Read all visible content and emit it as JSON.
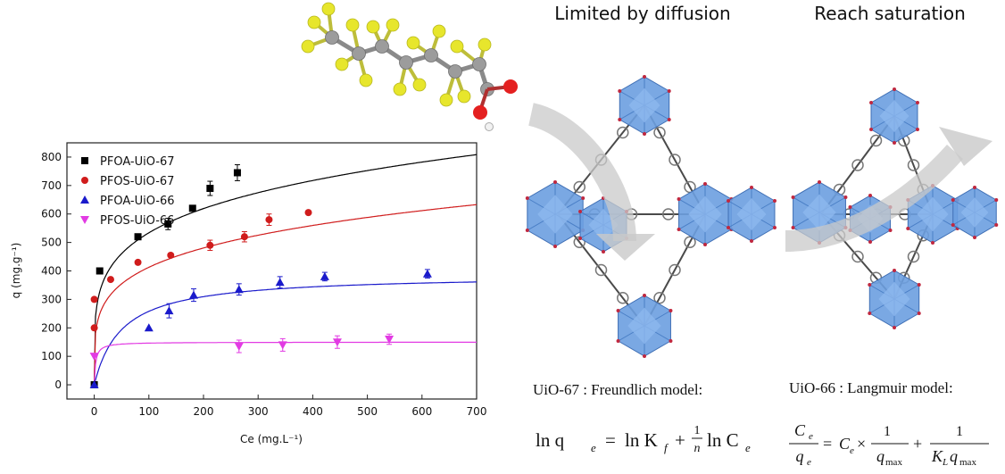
{
  "panels": {
    "left_heading": "Limited by diffusion",
    "right_heading": "Reach saturation",
    "left_model": "UiO-67 : Freundlich model:",
    "right_model": "UiO-66 : Langmuir model:"
  },
  "equations": {
    "freundlich": {
      "lhs": "ln q",
      "lhs_sub": "e",
      "eq": "=",
      "t1": "ln K",
      "t1_sub": "f",
      "plus": "+",
      "frac_num": "1",
      "frac_den": "n",
      "t2": "ln C",
      "t2_sub": "e"
    },
    "langmuir": {
      "lhs_num": "C",
      "lhs_num_sub": "e",
      "lhs_den": "q",
      "lhs_den_sub": "e",
      "eq": "=",
      "t1": "C",
      "t1_sub": "e",
      "times": "×",
      "f1_num": "1",
      "f1_den": "q",
      "f1_den_sub": "max",
      "plus": "+",
      "f2_num": "1",
      "f2_den": "K",
      "f2_den_sub": "L",
      "f2_den_tail": "q",
      "f2_den_tail_sub": "max"
    }
  },
  "chart_data": {
    "type": "scatter",
    "xlabel": "Ce (mg.L⁻¹)",
    "ylabel": "q (mg.g⁻¹)",
    "xlim": [
      -50,
      700
    ],
    "ylim": [
      -50,
      850
    ],
    "xticks": [
      0,
      100,
      200,
      300,
      400,
      500,
      600,
      700
    ],
    "yticks": [
      0,
      100,
      200,
      300,
      400,
      500,
      600,
      700,
      800
    ],
    "legend_position": "top-left",
    "grid": false,
    "series": [
      {
        "name": "PFOA-UiO-67",
        "color": "#000000",
        "marker": "square",
        "points": [
          [
            0,
            0
          ],
          [
            10,
            400
          ],
          [
            80,
            520
          ],
          [
            135,
            565
          ],
          [
            180,
            620
          ],
          [
            212,
            690
          ],
          [
            262,
            745
          ]
        ],
        "errors": [
          0,
          0,
          0,
          20,
          0,
          25,
          28
        ],
        "fit": {
          "model": "freundlich",
          "Kf": 200,
          "n": 4.69
        }
      },
      {
        "name": "PFOS-UiO-67",
        "color": "#d01c1c",
        "marker": "circle",
        "points": [
          [
            0,
            200
          ],
          [
            0,
            300
          ],
          [
            30,
            370
          ],
          [
            80,
            430
          ],
          [
            140,
            455
          ],
          [
            212,
            490
          ],
          [
            275,
            520
          ],
          [
            320,
            580
          ],
          [
            392,
            605
          ]
        ],
        "errors": [
          0,
          0,
          0,
          0,
          0,
          18,
          18,
          20,
          0
        ],
        "fit": {
          "model": "freundlich",
          "Kf": 150,
          "n": 4.55
        }
      },
      {
        "name": "PFOA-UiO-66",
        "color": "#1a1acb",
        "marker": "triangle-up",
        "points": [
          [
            0,
            0
          ],
          [
            100,
            200
          ],
          [
            137,
            260
          ],
          [
            182,
            315
          ],
          [
            265,
            335
          ],
          [
            340,
            360
          ],
          [
            422,
            380
          ],
          [
            610,
            390
          ]
        ],
        "errors": [
          0,
          0,
          25,
          22,
          20,
          20,
          15,
          15
        ],
        "fit": {
          "model": "langmuir",
          "qmax": 387,
          "KL": 0.02
        }
      },
      {
        "name": "PFOS-UiO-66",
        "color": "#e23be3",
        "marker": "triangle-down",
        "points": [
          [
            0,
            100
          ],
          [
            265,
            135
          ],
          [
            345,
            140
          ],
          [
            445,
            150
          ],
          [
            540,
            160
          ]
        ],
        "errors": [
          0,
          22,
          22,
          22,
          18
        ],
        "fit": {
          "model": "langmuir",
          "qmax": 150,
          "KL": 0.4
        }
      }
    ]
  },
  "molecule": {
    "name": "PFOA",
    "colors": {
      "carbon": "#9c9c9c",
      "fluorine": "#e7e62c",
      "oxygen": "#e42020",
      "hydrogen": "#f2f2f2"
    }
  },
  "mof": {
    "cluster_color": "#6b9ee0",
    "linker_color": "#4a4a4a",
    "arrow_color": "#b8b8b8"
  }
}
